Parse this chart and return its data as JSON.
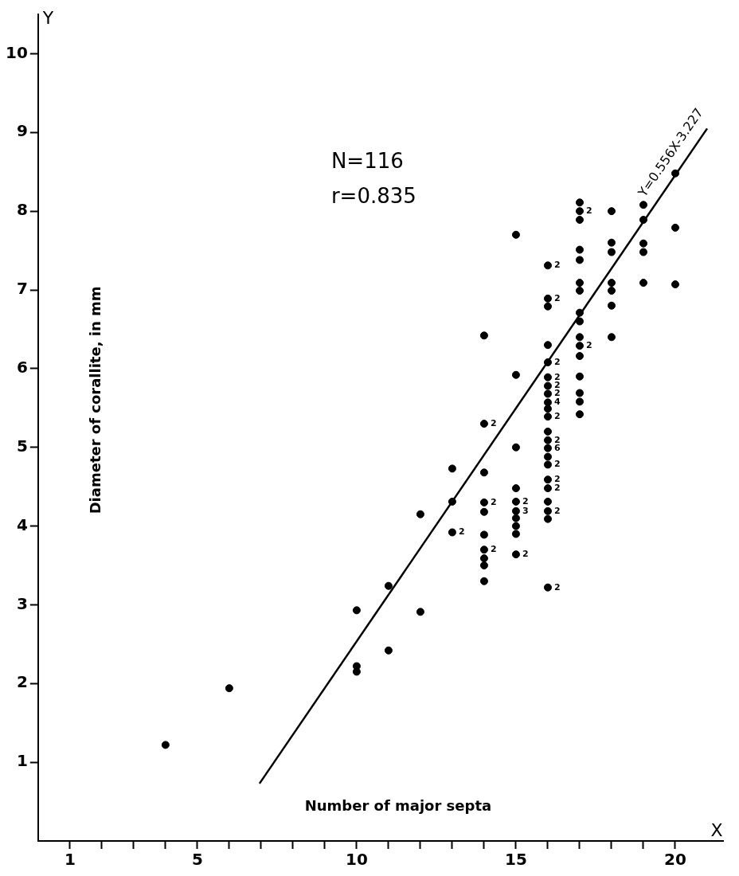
{
  "chart_data": {
    "type": "scatter",
    "xlabel": "Number of major septa",
    "ylabel": "Diameter of corallite, in mm",
    "xlim": [
      0,
      21.5
    ],
    "ylim": [
      0,
      10.5
    ],
    "xticks": [
      1,
      {
        "value": 2,
        "label": null
      },
      {
        "value": 3,
        "label": null
      },
      {
        "value": 4,
        "label": null
      },
      5,
      {
        "value": 6,
        "label": null
      },
      {
        "value": 7,
        "label": null
      },
      {
        "value": 8,
        "label": null
      },
      {
        "value": 9,
        "label": null
      },
      10,
      {
        "value": 11,
        "label": null
      },
      {
        "value": 12,
        "label": null
      },
      {
        "value": 13,
        "label": null
      },
      {
        "value": 14,
        "label": null
      },
      15,
      {
        "value": 16,
        "label": null
      },
      {
        "value": 17,
        "label": null
      },
      {
        "value": 18,
        "label": null
      },
      {
        "value": 19,
        "label": null
      },
      20
    ],
    "yticks": [
      1,
      2,
      3,
      4,
      5,
      6,
      7,
      8,
      9,
      10
    ],
    "grid": false,
    "legend": false,
    "marker": "circle",
    "series": [
      {
        "color": "#000000",
        "x": [
          4,
          6,
          10,
          10,
          10,
          11,
          11,
          12,
          12,
          13,
          13,
          13,
          14,
          14,
          14,
          14,
          14,
          14,
          14,
          14,
          14,
          14,
          15,
          15,
          15,
          15,
          15,
          15,
          15,
          15,
          15,
          15,
          16,
          16,
          16,
          16,
          16,
          16,
          16,
          16,
          16,
          16,
          16,
          16,
          16,
          16,
          16,
          16,
          16,
          16,
          16,
          16,
          16,
          16,
          17,
          17,
          17,
          17,
          17,
          17,
          17,
          17,
          17,
          17,
          17,
          17,
          17,
          17,
          17,
          17,
          18,
          18,
          18,
          18,
          18,
          18,
          18,
          19,
          19,
          19,
          19,
          19,
          20,
          20,
          20
        ],
        "values": [
          1.22,
          1.94,
          2.93,
          2.22,
          2.15,
          3.24,
          2.42,
          4.15,
          2.91,
          4.73,
          4.31,
          3.92,
          6.42,
          5.3,
          4.68,
          4.3,
          4.18,
          3.89,
          3.7,
          3.59,
          3.5,
          3.3,
          7.7,
          5.92,
          5.0,
          4.48,
          4.31,
          4.19,
          4.1,
          4.0,
          3.9,
          3.64,
          7.31,
          6.89,
          6.79,
          6.3,
          6.08,
          5.89,
          5.78,
          5.68,
          5.57,
          5.49,
          5.39,
          5.2,
          5.09,
          4.99,
          4.88,
          4.78,
          4.59,
          4.48,
          4.31,
          4.19,
          4.09,
          3.22,
          8.11,
          8.0,
          7.89,
          7.51,
          7.38,
          7.09,
          6.99,
          6.71,
          6.6,
          6.4,
          6.29,
          6.16,
          5.9,
          5.69,
          5.58,
          5.42,
          8.0,
          7.6,
          7.48,
          7.09,
          6.99,
          6.8,
          6.4,
          8.08,
          7.89,
          7.59,
          7.48,
          7.09,
          8.48,
          7.79,
          7.07
        ]
      },
      {
        "type": "line",
        "marker": "none",
        "name": "Y=0.556X-3.227",
        "color": "#000000",
        "x": [
          6.95,
          21
        ],
        "values": [
          0.73,
          9.05
        ]
      }
    ],
    "annotations": [
      "N=116",
      "r=0.835",
      "X",
      "Y",
      {
        "text": "2",
        "x": 13,
        "y": 3.92
      },
      {
        "text": "2",
        "x": 14,
        "y": 5.3
      },
      {
        "text": "2",
        "x": 14,
        "y": 4.3
      },
      {
        "text": "2",
        "x": 14,
        "y": 3.7
      },
      {
        "text": "2",
        "x": 15,
        "y": 4.31
      },
      {
        "text": "3",
        "x": 15,
        "y": 4.19
      },
      {
        "text": "2",
        "x": 15,
        "y": 3.64
      },
      {
        "text": "2",
        "x": 16,
        "y": 7.31
      },
      {
        "text": "2",
        "x": 16,
        "y": 6.89
      },
      {
        "text": "2",
        "x": 16,
        "y": 6.08
      },
      {
        "text": "2",
        "x": 16,
        "y": 5.89
      },
      {
        "text": "2",
        "x": 16,
        "y": 5.78
      },
      {
        "text": "2",
        "x": 16,
        "y": 5.68
      },
      {
        "text": "4",
        "x": 16,
        "y": 5.57
      },
      {
        "text": "2",
        "x": 16,
        "y": 5.39
      },
      {
        "text": "2",
        "x": 16,
        "y": 5.09
      },
      {
        "text": "6",
        "x": 16,
        "y": 4.99
      },
      {
        "text": "2",
        "x": 16,
        "y": 4.78
      },
      {
        "text": "2",
        "x": 16,
        "y": 4.59
      },
      {
        "text": "2",
        "x": 16,
        "y": 4.48
      },
      {
        "text": "2",
        "x": 16,
        "y": 4.19
      },
      {
        "text": "2",
        "x": 16,
        "y": 3.22
      },
      {
        "text": "2",
        "x": 17,
        "y": 8.0
      },
      {
        "text": "2",
        "x": 17,
        "y": 6.29
      }
    ]
  }
}
